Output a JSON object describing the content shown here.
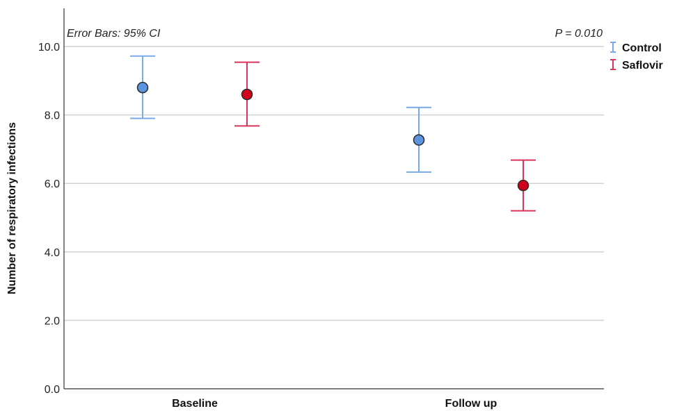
{
  "chart_data": {
    "type": "scatter",
    "subtype": "error-bar",
    "title": "",
    "xlabel": "",
    "ylabel": "Number of respiratory infections",
    "categories": [
      "Baseline",
      "Follow up"
    ],
    "ylim": [
      0.0,
      11.2
    ],
    "yticks": [
      "0.0",
      "2.0",
      "4.0",
      "6.0",
      "8.0",
      "10.0"
    ],
    "ytick_values": [
      0,
      2,
      4,
      6,
      8,
      10
    ],
    "grid": true,
    "legend_position": "top-right, outside plot",
    "annotations": {
      "error_bars": "Error Bars: 95% CI",
      "p_value": "P = 0.010"
    },
    "series": [
      {
        "name": "Control",
        "color": "#5b95e0",
        "error_color": "#7aaae6",
        "values": [
          8.8,
          7.27
        ],
        "lower": [
          7.9,
          6.33
        ],
        "upper": [
          9.72,
          8.22
        ]
      },
      {
        "name": "Saflovir",
        "color": "#d0021b",
        "error_color": "#d9345a",
        "values": [
          8.6,
          5.94
        ],
        "lower": [
          7.68,
          5.2
        ],
        "upper": [
          9.54,
          6.68
        ]
      }
    ]
  }
}
